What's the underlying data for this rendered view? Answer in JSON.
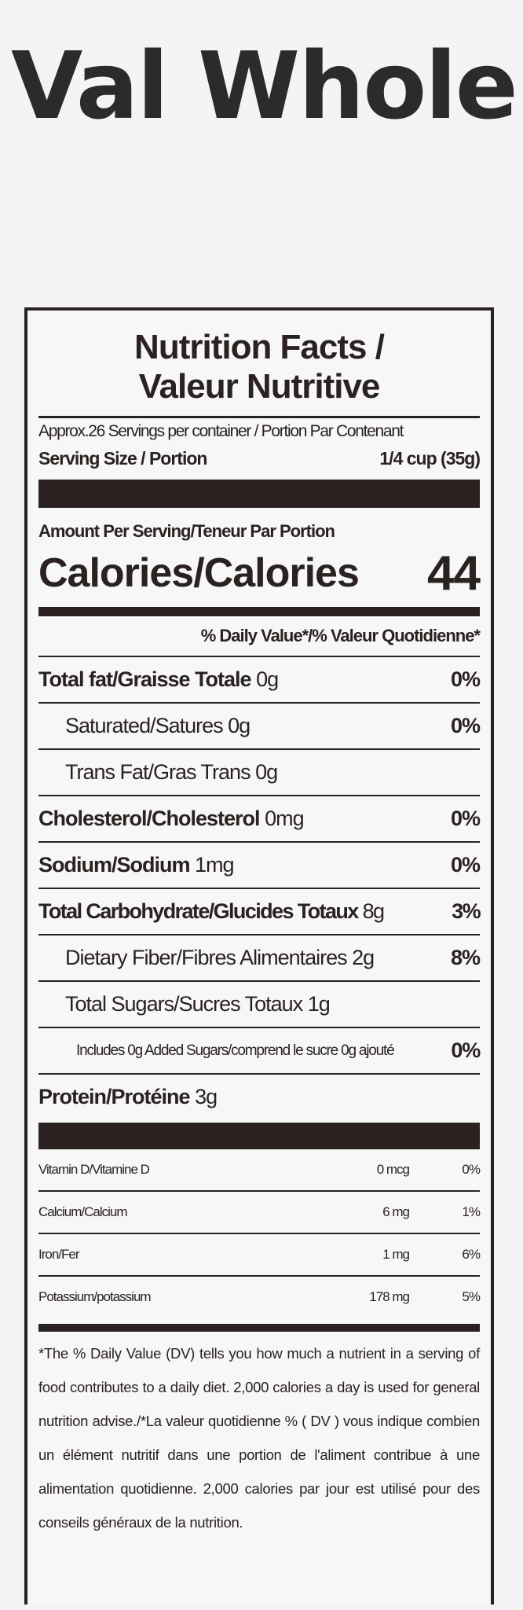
{
  "brand": "Val Whole",
  "label": {
    "title": [
      "Nutrition Facts /",
      "Valeur Nutritive"
    ],
    "servings": "Approx.26 Servings per container / Portion Par Contenant",
    "serving_size": {
      "label": "Serving Size / Portion",
      "value": "1/4 cup (35g)"
    },
    "amount_per_serving": "Amount Per Serving/Teneur Par Portion",
    "calories": {
      "label": "Calories/Calories",
      "value": 44
    },
    "dv_header": "% Daily Value*/% Valeur Quotidienne*",
    "nutrients": [
      {
        "name": "Total fat/Graisse Totale",
        "amount": "0g",
        "dv": "0%"
      },
      {
        "name": "Saturated/Satures",
        "amount": "0g",
        "dv": "0%"
      },
      {
        "name": "Trans Fat/Gras Trans",
        "amount": "0g"
      },
      {
        "name": "Cholesterol/Cholesterol",
        "amount": "0mg",
        "dv": "0%"
      },
      {
        "name": "Sodium/Sodium",
        "amount": "1mg",
        "dv": "0%"
      },
      {
        "name": "Total Carbohydrate/Glucides Totaux",
        "amount": "8g",
        "dv": "3%"
      },
      {
        "name": "Dietary Fiber/Fibres Alimentaires",
        "amount": "2g",
        "dv": "8%"
      },
      {
        "name": "Total Sugars/Sucres Totaux",
        "amount": "1g"
      },
      {
        "name": "Includes 0g Added Sugars/comprend le sucre 0g ajouté",
        "dv": "0%"
      },
      {
        "name": "Protein/Protéine",
        "amount": "3g"
      }
    ],
    "vitamins": [
      {
        "name": "Vitamin D/Vitamine D",
        "amount": "0 mcg",
        "dv": "0%"
      },
      {
        "name": "Calcium/Calcium",
        "amount": "6 mg",
        "dv": "1%"
      },
      {
        "name": "Iron/Fer",
        "amount": "1 mg",
        "dv": "6%"
      },
      {
        "name": "Potassium/potassium",
        "amount": "178 mg",
        "dv": "5%"
      }
    ],
    "footnote": "*The % Daily Value (DV) tells you how much a nutrient in a serving of food contributes to a daily diet. 2,000 calories a day is used for general nutrition advise./*La valeur quotidienne % ( DV ) vous indique combien un élément nutritif dans une portion de l'aliment contribue à une alimentation quotidienne. 2,000 calories par jour est utilisé pour des conseils généraux de la nutrition."
  }
}
